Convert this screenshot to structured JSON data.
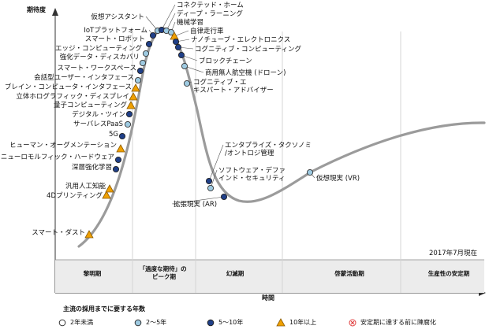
{
  "chart_data": {
    "type": "scatter",
    "title": "",
    "ylabel": "期待度",
    "xlabel": "時間",
    "as_of": "2017年7月現在",
    "phases": [
      "黎明期",
      "「過度な期待」のピーク期",
      "幻滅期",
      "啓蒙活動期",
      "生産性の安定期"
    ],
    "legend": {
      "title": "主流の採用までに要する年数",
      "items": [
        {
          "key": "lt2",
          "label": "2年未満",
          "color": "#ffffff"
        },
        {
          "key": "y2_5",
          "label": "2～5年",
          "color": "#9ecae1"
        },
        {
          "key": "y5_10",
          "label": "5～10年",
          "color": "#1f3f88"
        },
        {
          "key": "gt10",
          "label": "10年以上",
          "color": "#f0a000"
        },
        {
          "key": "obsolete",
          "label": "安定期に達する前に陳腐化",
          "color": "#e04040"
        }
      ]
    },
    "points": [
      {
        "label": "スマート・ダスト",
        "cat": "gt10"
      },
      {
        "label": "4Dプリンティング",
        "cat": "gt10"
      },
      {
        "label": "汎用人工知能",
        "cat": "gt10"
      },
      {
        "label": "深層強化学習",
        "cat": "y5_10"
      },
      {
        "label": "ニューロモルフィック・ハードウェア",
        "cat": "y5_10"
      },
      {
        "label": "ヒューマン・オーグメンテーション",
        "cat": "gt10"
      },
      {
        "label": "5G",
        "cat": "y5_10"
      },
      {
        "label": "サーバレスPaaS",
        "cat": "y2_5"
      },
      {
        "label": "デジタル・ツイン",
        "cat": "y5_10"
      },
      {
        "label": "量子コンピューティング",
        "cat": "gt10"
      },
      {
        "label": "立体ホログラフィック・ディスプレイ",
        "cat": "gt10"
      },
      {
        "label": "ブレイン・コンピュータ・インタフェース",
        "cat": "gt10"
      },
      {
        "label": "会話型ユーザー・インタフェース",
        "cat": "y2_5"
      },
      {
        "label": "スマート・ワークスペース",
        "cat": "y5_10"
      },
      {
        "label": "強化データ・ディスカバリ",
        "cat": "y2_5"
      },
      {
        "label": "エッジ・コンピューティング",
        "cat": "y2_5"
      },
      {
        "label": "スマート・ロボット",
        "cat": "y5_10"
      },
      {
        "label": "IoTプラットフォーム",
        "cat": "y5_10"
      },
      {
        "label": "仮想アシスタント",
        "cat": "y2_5"
      },
      {
        "label": "コネクテッド・ホーム",
        "cat": "y5_10"
      },
      {
        "label": "ディープ・ラーニング",
        "cat": "y2_5"
      },
      {
        "label": "機械学習",
        "cat": "y2_5"
      },
      {
        "label": "自律走行車",
        "cat": "gt10"
      },
      {
        "label": "ナノチューブ・エレクトロニクス",
        "cat": "y5_10"
      },
      {
        "label": "コグニティブ・コンピューティング",
        "cat": "y5_10"
      },
      {
        "label": "ブロックチェーン",
        "cat": "y5_10"
      },
      {
        "label": "商用無人航空機 (ドローン)",
        "cat": "y2_5"
      },
      {
        "label": "コグニティブ・エキスパート・アドバイザー",
        "cat": "y2_5"
      },
      {
        "label": "エンタプライズ・タクソノミ/オントロジ管理",
        "cat": "y5_10"
      },
      {
        "label": "ソフトウェア・デファインド・セキュリティ",
        "cat": "y2_5"
      },
      {
        "label": "拡張現実 (AR)",
        "cat": "y5_10"
      },
      {
        "label": "仮想現実 (VR)",
        "cat": "y2_5"
      }
    ]
  }
}
